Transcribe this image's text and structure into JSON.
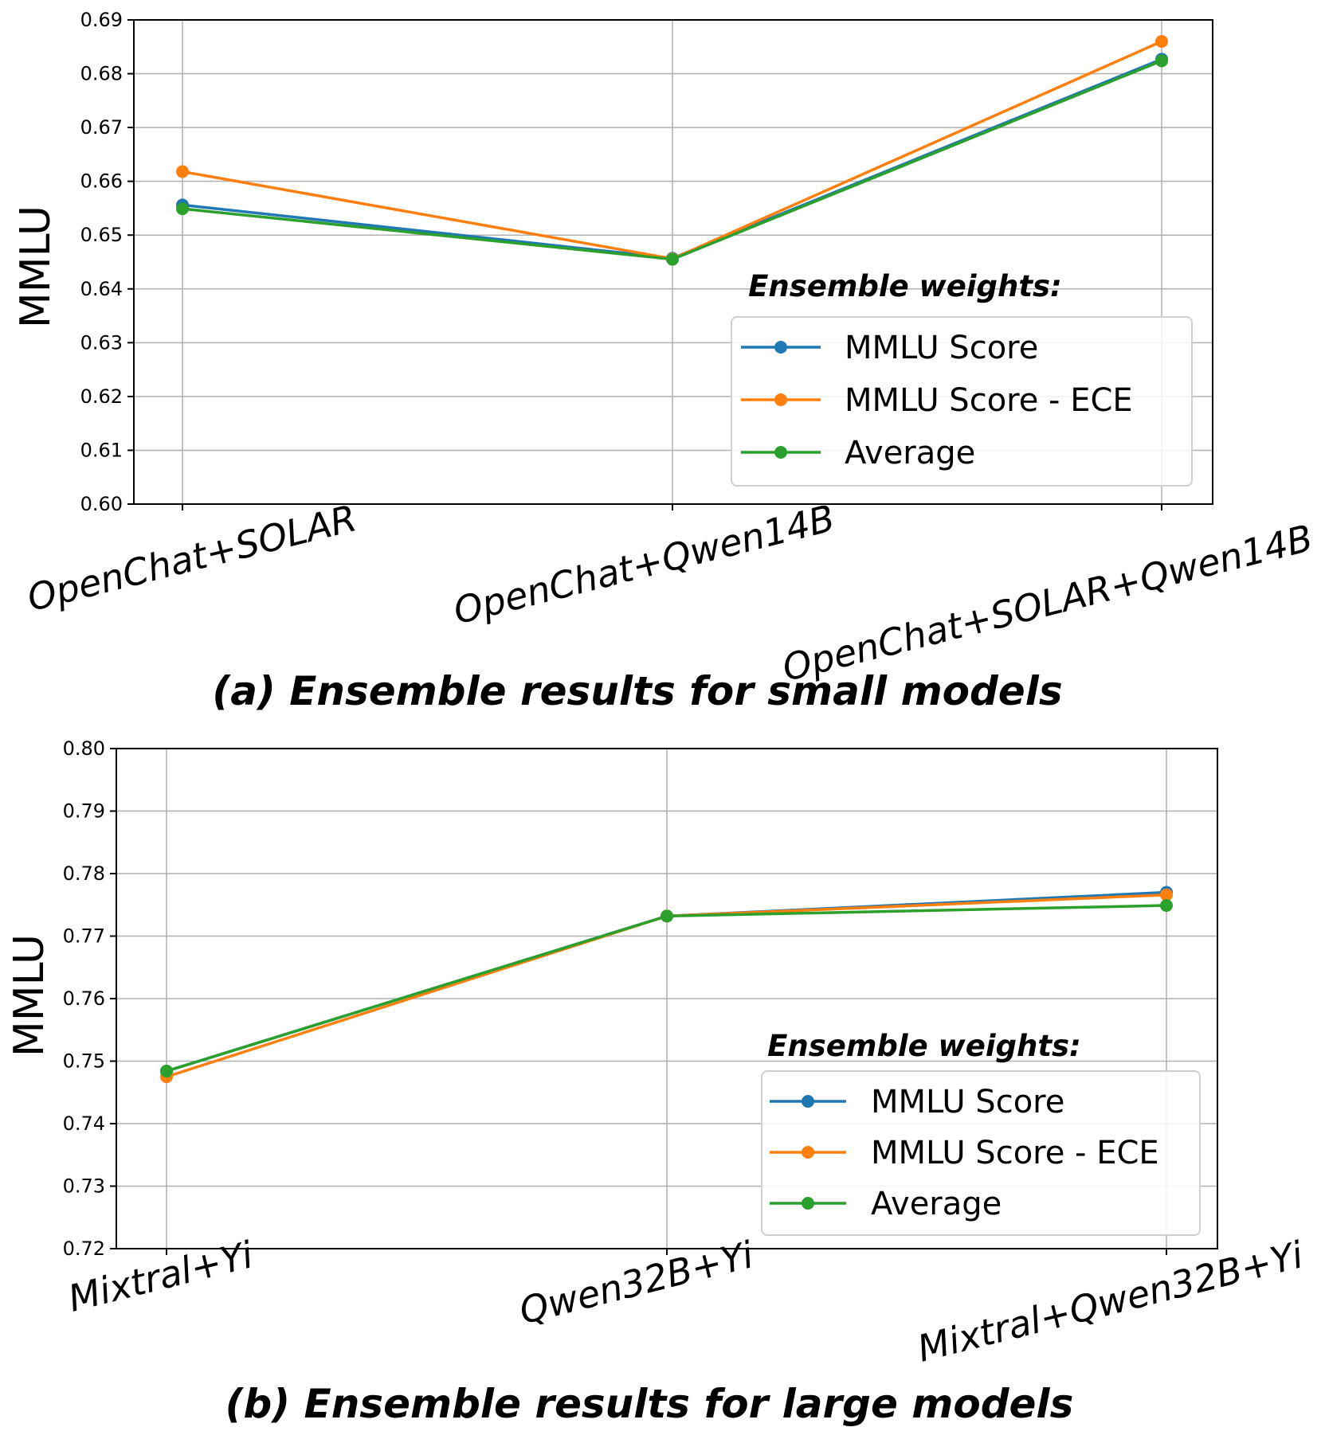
{
  "colors": {
    "MMLU Score": "#1f77b4",
    "MMLU Score - ECE": "#ff7f0e",
    "Average": "#2ca02c",
    "grid": "#b0b0b0"
  },
  "chart_data": [
    {
      "type": "line",
      "caption": "(a) Ensemble results for small models",
      "ylabel": "MMLU",
      "ylim": [
        0.6,
        0.69
      ],
      "yticks": [
        "0.60",
        "0.61",
        "0.62",
        "0.63",
        "0.64",
        "0.65",
        "0.66",
        "0.67",
        "0.68",
        "0.69"
      ],
      "categories": [
        "OpenChat+SOLAR",
        "OpenChat+Qwen14B",
        "OpenChat+SOLAR+Qwen14B"
      ],
      "grid": true,
      "legend_title": "Ensemble weights:",
      "legend_position": "lower-right",
      "series": [
        {
          "name": "MMLU Score",
          "values": [
            0.6556,
            0.6457,
            0.6827
          ]
        },
        {
          "name": "MMLU Score - ECE",
          "values": [
            0.6618,
            0.6456,
            0.686
          ]
        },
        {
          "name": "Average",
          "values": [
            0.6549,
            0.6455,
            0.6824
          ]
        }
      ]
    },
    {
      "type": "line",
      "caption": "(b) Ensemble results for large models",
      "ylabel": "MMLU",
      "ylim": [
        0.72,
        0.8
      ],
      "yticks": [
        "0.72",
        "0.73",
        "0.74",
        "0.75",
        "0.76",
        "0.77",
        "0.78",
        "0.79",
        "0.80"
      ],
      "categories": [
        "Mixtral+Yi",
        "Qwen32B+Yi",
        "Mixtral+Qwen32B+Yi"
      ],
      "grid": true,
      "legend_title": "Ensemble weights:",
      "legend_position": "lower-right",
      "series": [
        {
          "name": "MMLU Score",
          "values": [
            0.7484,
            0.7732,
            0.777
          ]
        },
        {
          "name": "MMLU Score - ECE",
          "values": [
            0.7475,
            0.7732,
            0.7766
          ]
        },
        {
          "name": "Average",
          "values": [
            0.7484,
            0.7732,
            0.7749
          ]
        }
      ]
    }
  ]
}
